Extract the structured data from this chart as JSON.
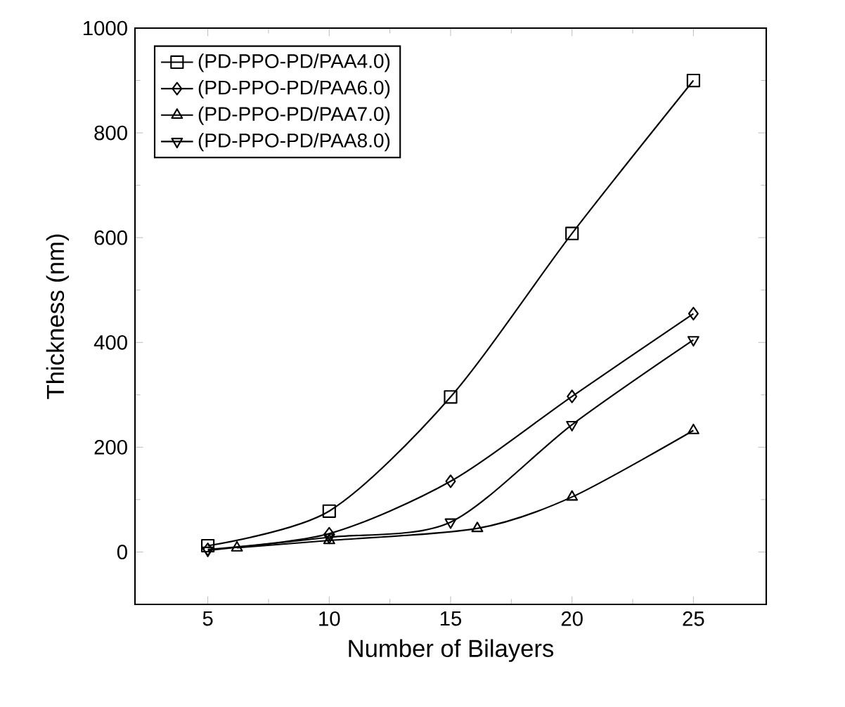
{
  "chart_data": {
    "type": "line",
    "xlabel": "Number of Bilayers",
    "ylabel": "Thickness (nm)",
    "xlim": [
      2,
      28
    ],
    "ylim": [
      -100,
      1000
    ],
    "xticks": [
      5,
      10,
      15,
      20,
      25
    ],
    "yticks": [
      0,
      200,
      400,
      600,
      800,
      1000
    ],
    "legend": "top left",
    "grid": false,
    "line_style": "solid",
    "series": [
      {
        "name": "(PD-PPO-PD/PAA4.0)",
        "color": "#000000",
        "marker": "square",
        "x": [
          5,
          10,
          15,
          20,
          25
        ],
        "values": [
          12,
          78,
          296,
          608,
          900
        ]
      },
      {
        "name": "(PD-PPO-PD/PAA6.0)",
        "color": "#000000",
        "marker": "diamond",
        "x": [
          5,
          10,
          15,
          20,
          25
        ],
        "values": [
          5,
          35,
          135,
          297,
          455
        ]
      },
      {
        "name": "(PD-PPO-PD/PAA7.0)",
        "color": "#000000",
        "marker": "triangle",
        "x": [
          6.2,
          10,
          16.1,
          20,
          25
        ],
        "values": [
          8,
          22,
          45,
          105,
          232
        ]
      },
      {
        "name": "(PD-PPO-PD/PAA8.0)",
        "color": "#000000",
        "marker": "triangle down",
        "x": [
          5,
          10,
          15,
          20,
          25
        ],
        "values": [
          3,
          28,
          57,
          243,
          405
        ]
      }
    ]
  }
}
